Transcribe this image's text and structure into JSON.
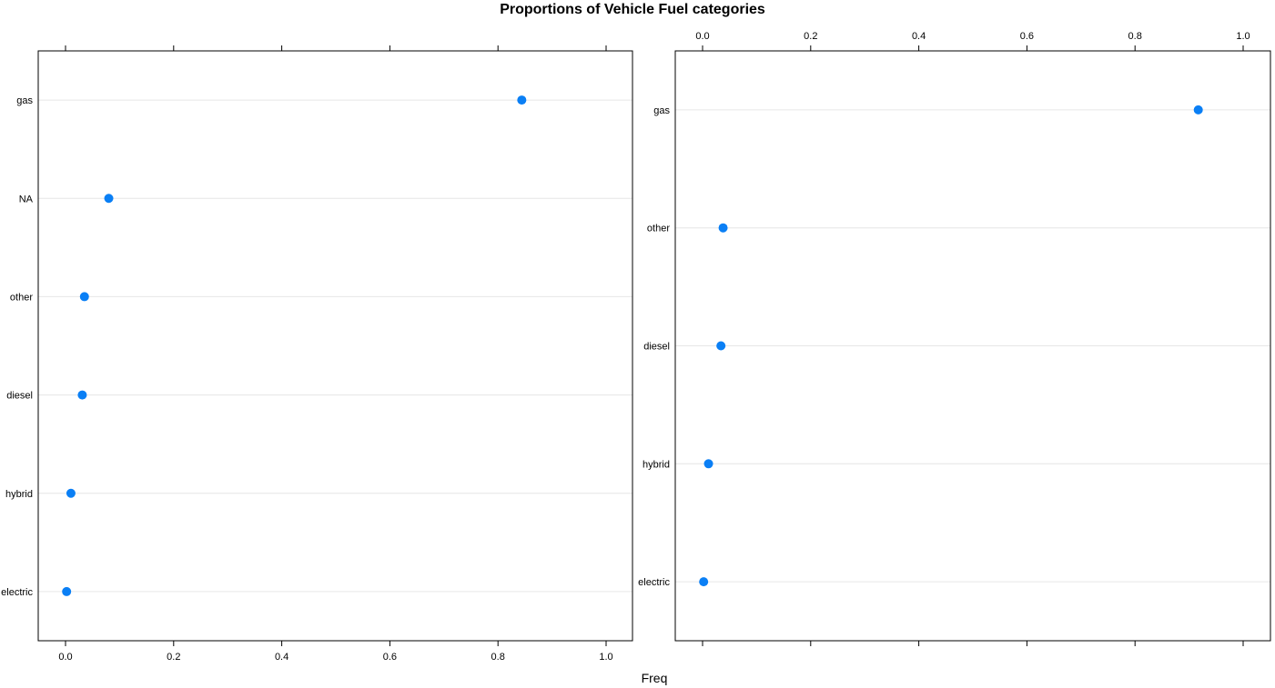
{
  "chart_data": {
    "type": "dot",
    "title": "Proportions of Vehicle Fuel categories",
    "xlabel": "Freq",
    "xlim": [
      0,
      1
    ],
    "xticks": [
      0,
      0.2,
      0.4,
      0.6,
      0.8,
      1
    ],
    "xtick_labels": [
      "0.0",
      "0.2",
      "0.4",
      "0.6",
      "0.8",
      "1.0"
    ],
    "grid": true,
    "point_color": "#0a7ff5",
    "panels": [
      {
        "tick_labels_side": "bottom",
        "categories": [
          "gas",
          "NA",
          "other",
          "diesel",
          "hybrid",
          "electric"
        ],
        "values": [
          0.844,
          0.08,
          0.035,
          0.031,
          0.01,
          0.002
        ]
      },
      {
        "tick_labels_side": "top",
        "categories": [
          "gas",
          "other",
          "diesel",
          "hybrid",
          "electric"
        ],
        "values": [
          0.917,
          0.038,
          0.034,
          0.011,
          0.002
        ]
      }
    ]
  }
}
